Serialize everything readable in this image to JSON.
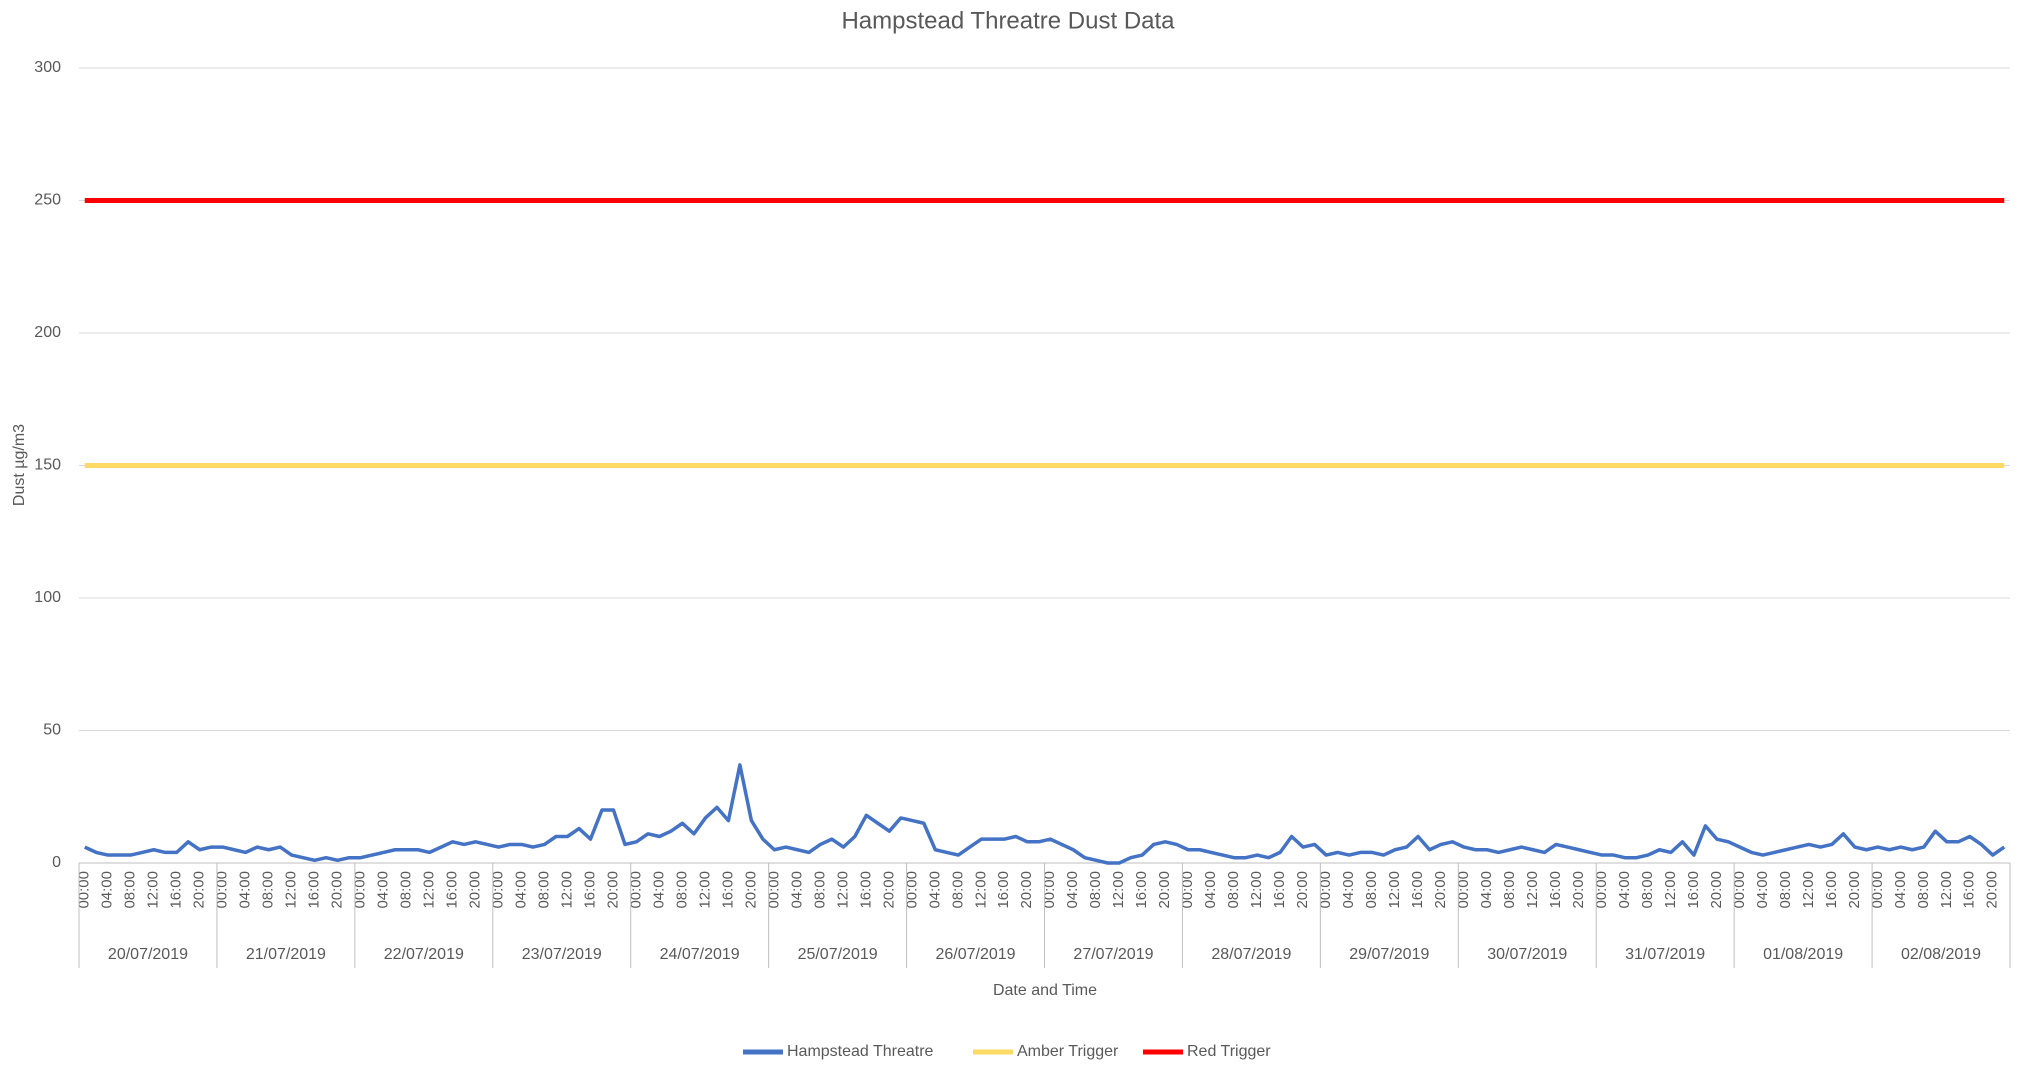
{
  "chart_data": {
    "type": "line",
    "title": "Hampstead Threatre Dust Data",
    "y_label": "Dust µg/m3",
    "x_label": "Date and Time",
    "categories": [
      "00:00",
      null,
      "04:00",
      null,
      "08:00",
      null,
      "12:00",
      null,
      "16:00",
      null,
      "20:00",
      null,
      "00:00",
      null,
      "04:00",
      null,
      "08:00",
      null,
      "12:00",
      null,
      "16:00",
      null,
      "20:00",
      null,
      "00:00",
      null,
      "04:00",
      null,
      "08:00",
      null,
      "12:00",
      null,
      "16:00",
      null,
      "20:00",
      null,
      "00:00",
      null,
      "04:00",
      null,
      "08:00",
      null,
      "12:00",
      null,
      "16:00",
      null,
      "20:00",
      null,
      "00:00",
      null,
      "04:00",
      null,
      "08:00",
      null,
      "12:00",
      null,
      "16:00",
      null,
      "20:00",
      null,
      "00:00",
      null,
      "04:00",
      null,
      "08:00",
      null,
      "12:00",
      null,
      "16:00",
      null,
      "20:00",
      null,
      "00:00",
      null,
      "04:00",
      null,
      "08:00",
      null,
      "12:00",
      null,
      "16:00",
      null,
      "20:00",
      null,
      "00:00",
      null,
      "04:00",
      null,
      "08:00",
      null,
      "12:00",
      null,
      "16:00",
      null,
      "20:00",
      null,
      "00:00",
      null,
      "04:00",
      null,
      "08:00",
      null,
      "12:00",
      null,
      "16:00",
      null,
      "20:00",
      null,
      "00:00",
      null,
      "04:00",
      null,
      "08:00",
      null,
      "12:00",
      null,
      "16:00",
      null,
      "20:00",
      null,
      "00:00",
      null,
      "04:00",
      null,
      "08:00",
      null,
      "12:00",
      null,
      "16:00",
      null,
      "20:00",
      null,
      "00:00",
      null,
      "04:00",
      null,
      "08:00",
      null,
      "12:00",
      null,
      "16:00",
      null,
      "20:00",
      null,
      "00:00",
      null,
      "04:00",
      null,
      "08:00",
      null,
      "12:00",
      null,
      "16:00",
      null,
      "20:00",
      null,
      "00:00",
      null,
      "04:00",
      null,
      "08:00",
      null,
      "12:00",
      null,
      "16:00",
      null,
      "20:00",
      null
    ],
    "date_groups": [
      "20/07/2019",
      "21/07/2019",
      "22/07/2019",
      "23/07/2019",
      "24/07/2019",
      "25/07/2019",
      "26/07/2019",
      "27/07/2019",
      "28/07/2019",
      "29/07/2019",
      "30/07/2019",
      "31/07/2019",
      "01/08/2019",
      "02/08/2019"
    ],
    "series": [
      {
        "name": "Hampstead Threatre",
        "color": "#4472c4",
        "values": [
          6,
          4,
          3,
          3,
          3,
          4,
          5,
          4,
          4,
          8,
          5,
          6,
          6,
          5,
          4,
          6,
          5,
          6,
          3,
          2,
          1,
          2,
          1,
          2,
          2,
          3,
          4,
          5,
          5,
          5,
          4,
          6,
          8,
          7,
          8,
          7,
          6,
          7,
          7,
          6,
          7,
          10,
          10,
          13,
          9,
          20,
          20,
          7,
          8,
          11,
          10,
          12,
          15,
          11,
          17,
          21,
          16,
          37,
          16,
          9,
          5,
          6,
          5,
          4,
          7,
          9,
          6,
          10,
          18,
          15,
          12,
          17,
          16,
          15,
          5,
          4,
          3,
          6,
          9,
          9,
          9,
          10,
          8,
          8,
          9,
          7,
          5,
          2,
          1,
          0,
          0,
          2,
          3,
          7,
          8,
          7,
          5,
          5,
          4,
          3,
          2,
          2,
          3,
          2,
          4,
          10,
          6,
          7,
          3,
          4,
          3,
          4,
          4,
          3,
          5,
          6,
          10,
          5,
          7,
          8,
          6,
          5,
          5,
          4,
          5,
          6,
          5,
          4,
          7,
          6,
          5,
          4,
          3,
          3,
          2,
          2,
          3,
          5,
          4,
          8,
          3,
          14,
          9,
          8,
          6,
          4,
          3,
          4,
          5,
          6,
          7,
          6,
          7,
          11,
          6,
          5,
          6,
          5,
          6,
          5,
          6,
          12,
          8,
          8,
          10,
          7,
          3,
          6
        ]
      },
      {
        "name": "Amber Trigger",
        "color": "#ffd966",
        "values": [
          150,
          150,
          150,
          150,
          150,
          150,
          150,
          150,
          150,
          150,
          150,
          150,
          150,
          150,
          150,
          150,
          150,
          150,
          150,
          150,
          150,
          150,
          150,
          150,
          150,
          150,
          150,
          150,
          150,
          150,
          150,
          150,
          150,
          150,
          150,
          150,
          150,
          150,
          150,
          150,
          150,
          150,
          150,
          150,
          150,
          150,
          150,
          150,
          150,
          150,
          150,
          150,
          150,
          150,
          150,
          150,
          150,
          150,
          150,
          150,
          150,
          150,
          150,
          150,
          150,
          150,
          150,
          150,
          150,
          150,
          150,
          150,
          150,
          150,
          150,
          150,
          150,
          150,
          150,
          150,
          150,
          150,
          150,
          150,
          150,
          150,
          150,
          150,
          150,
          150,
          150,
          150,
          150,
          150,
          150,
          150,
          150,
          150,
          150,
          150,
          150,
          150,
          150,
          150,
          150,
          150,
          150,
          150,
          150,
          150,
          150,
          150,
          150,
          150,
          150,
          150,
          150,
          150,
          150,
          150,
          150,
          150,
          150,
          150,
          150,
          150,
          150,
          150,
          150,
          150,
          150,
          150,
          150,
          150,
          150,
          150,
          150,
          150,
          150,
          150,
          150,
          150,
          150,
          150,
          150,
          150,
          150,
          150,
          150,
          150,
          150,
          150,
          150,
          150,
          150,
          150,
          150,
          150,
          150,
          150,
          150,
          150,
          150,
          150,
          150,
          150,
          150,
          150
        ]
      },
      {
        "name": "Red Trigger",
        "color": "#ff0000",
        "values": [
          250,
          250,
          250,
          250,
          250,
          250,
          250,
          250,
          250,
          250,
          250,
          250,
          250,
          250,
          250,
          250,
          250,
          250,
          250,
          250,
          250,
          250,
          250,
          250,
          250,
          250,
          250,
          250,
          250,
          250,
          250,
          250,
          250,
          250,
          250,
          250,
          250,
          250,
          250,
          250,
          250,
          250,
          250,
          250,
          250,
          250,
          250,
          250,
          250,
          250,
          250,
          250,
          250,
          250,
          250,
          250,
          250,
          250,
          250,
          250,
          250,
          250,
          250,
          250,
          250,
          250,
          250,
          250,
          250,
          250,
          250,
          250,
          250,
          250,
          250,
          250,
          250,
          250,
          250,
          250,
          250,
          250,
          250,
          250,
          250,
          250,
          250,
          250,
          250,
          250,
          250,
          250,
          250,
          250,
          250,
          250,
          250,
          250,
          250,
          250,
          250,
          250,
          250,
          250,
          250,
          250,
          250,
          250,
          250,
          250,
          250,
          250,
          250,
          250,
          250,
          250,
          250,
          250,
          250,
          250,
          250,
          250,
          250,
          250,
          250,
          250,
          250,
          250,
          250,
          250,
          250,
          250,
          250,
          250,
          250,
          250,
          250,
          250,
          250,
          250,
          250,
          250,
          250,
          250,
          250,
          250,
          250,
          250,
          250,
          250,
          250,
          250,
          250,
          250,
          250,
          250,
          250,
          250,
          250,
          250,
          250,
          250,
          250,
          250,
          250,
          250,
          250,
          250
        ]
      }
    ],
    "ylim": [
      0,
      300
    ],
    "yticks": [
      0,
      50,
      100,
      150,
      200,
      250,
      300
    ],
    "grid": true,
    "legend": "bottom"
  }
}
